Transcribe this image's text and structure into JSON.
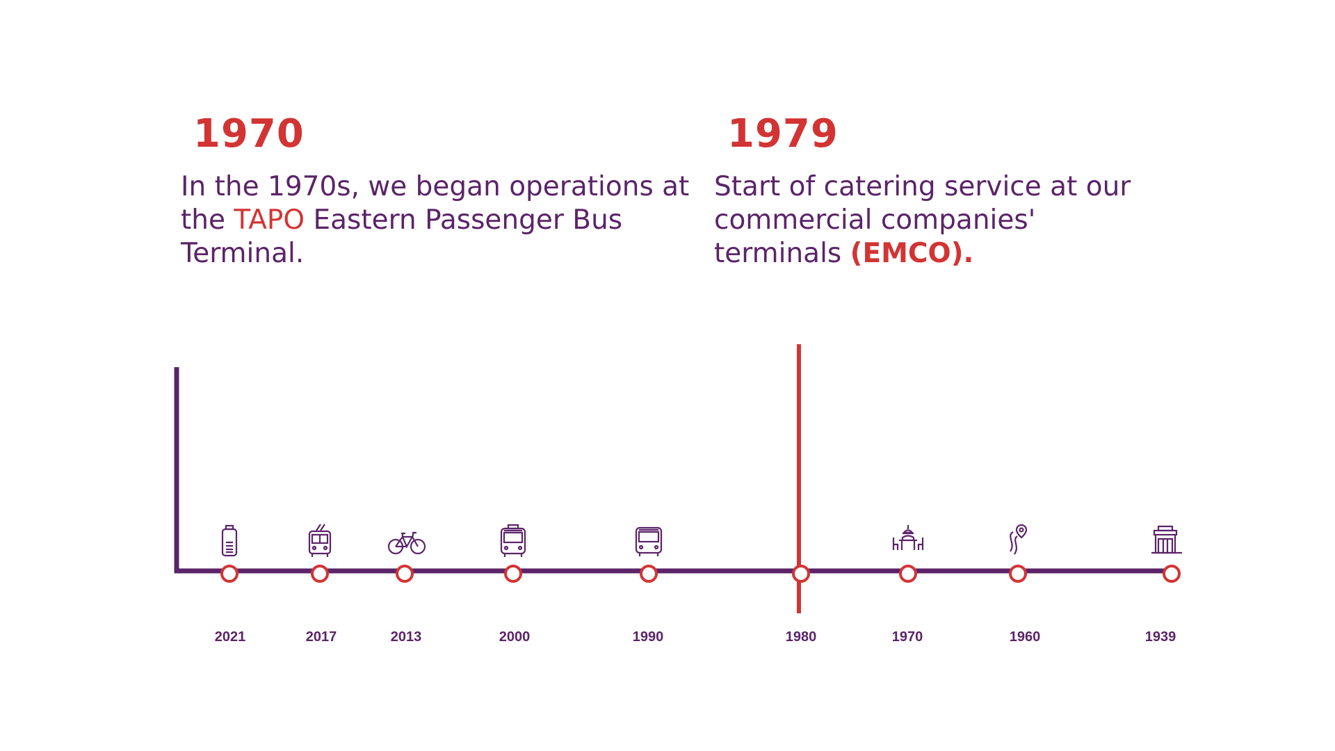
{
  "left_event": {
    "year": "1970",
    "desc_pre": "In the 1970s, we began operations at the ",
    "desc_highlight": "TAPO",
    "desc_post": " Eastern Passenger Bus Terminal."
  },
  "right_event": {
    "year": "1979",
    "desc_pre": "Start of catering service at our commercial companies' terminals ",
    "desc_highlight": "(EMCO)."
  },
  "timeline": {
    "years": [
      "2021",
      "2017",
      "2013",
      "2000",
      "1990",
      "1980",
      "1970",
      "1960",
      "1939"
    ],
    "icons": [
      "battery-icon",
      "trolleybus-icon",
      "bicycle-icon",
      "bus-front-icon",
      "coach-icon",
      "",
      "dining-table-icon",
      "route-pin-icon",
      "terminal-building-icon"
    ],
    "current_year": "1980"
  },
  "colors": {
    "accent": "#d23434",
    "primary": "#5b2468",
    "background": "#ffffff"
  }
}
